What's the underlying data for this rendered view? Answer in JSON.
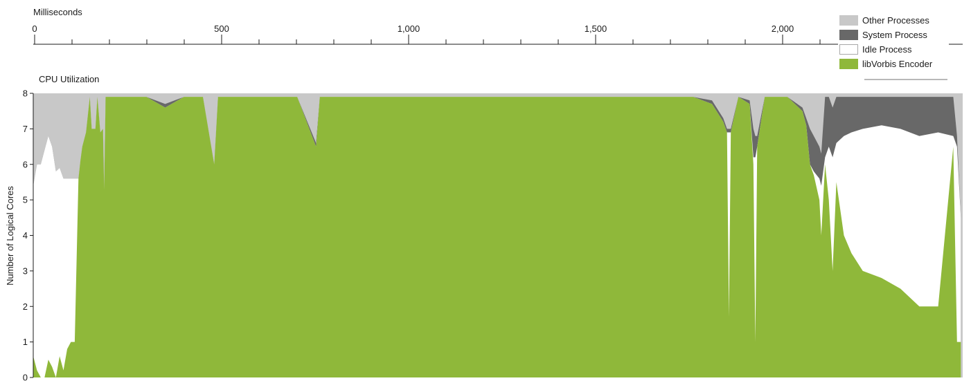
{
  "chart_data": {
    "type": "area",
    "time_axis_label": "Milliseconds",
    "time_ticks": [
      "0",
      "500",
      "1,000",
      "1,500",
      "2,000"
    ],
    "title": "CPU Utilization",
    "ylabel": "Number of Logical Cores",
    "ylim": [
      0,
      8
    ],
    "y_ticks": [
      "0",
      "1",
      "2",
      "3",
      "4",
      "5",
      "6",
      "7",
      "8"
    ],
    "xlim": [
      0,
      2465
    ],
    "stack_order": [
      "libVorbis Encoder",
      "Idle Process",
      "System Process",
      "Other Processes"
    ],
    "legend_position": "top-right",
    "series": [
      {
        "name": "libVorbis Encoder",
        "color": "#8fb83a",
        "points": [
          [
            0,
            0.6
          ],
          [
            10,
            0.2
          ],
          [
            20,
            0
          ],
          [
            30,
            0
          ],
          [
            40,
            0.5
          ],
          [
            50,
            0.3
          ],
          [
            60,
            0
          ],
          [
            70,
            0.6
          ],
          [
            80,
            0.2
          ],
          [
            90,
            0.8
          ],
          [
            100,
            1
          ],
          [
            110,
            1
          ],
          [
            120,
            5.6
          ],
          [
            125,
            6.1
          ],
          [
            130,
            6.5
          ],
          [
            140,
            6.9
          ],
          [
            150,
            7.9
          ],
          [
            155,
            7.0
          ],
          [
            165,
            7.0
          ],
          [
            170,
            7.9
          ],
          [
            178,
            6.9
          ],
          [
            185,
            7.0
          ],
          [
            188,
            5.3
          ],
          [
            192,
            7.9
          ],
          [
            200,
            7.9
          ],
          [
            240,
            7.9
          ],
          [
            300,
            7.9
          ],
          [
            350,
            7.6
          ],
          [
            400,
            7.9
          ],
          [
            450,
            7.9
          ],
          [
            480,
            6.0
          ],
          [
            490,
            7.9
          ],
          [
            550,
            7.9
          ],
          [
            600,
            7.9
          ],
          [
            650,
            7.9
          ],
          [
            700,
            7.9
          ],
          [
            750,
            6.5
          ],
          [
            760,
            7.9
          ],
          [
            800,
            7.9
          ],
          [
            850,
            7.9
          ],
          [
            900,
            7.9
          ],
          [
            950,
            7.9
          ],
          [
            1000,
            7.9
          ],
          [
            1050,
            7.9
          ],
          [
            1100,
            7.9
          ],
          [
            1150,
            7.9
          ],
          [
            1200,
            7.9
          ],
          [
            1250,
            7.9
          ],
          [
            1300,
            7.9
          ],
          [
            1350,
            7.9
          ],
          [
            1400,
            7.9
          ],
          [
            1450,
            7.9
          ],
          [
            1500,
            7.9
          ],
          [
            1550,
            7.9
          ],
          [
            1600,
            7.9
          ],
          [
            1650,
            7.9
          ],
          [
            1700,
            7.9
          ],
          [
            1750,
            7.9
          ],
          [
            1800,
            7.7
          ],
          [
            1830,
            7.2
          ],
          [
            1840,
            6.9
          ],
          [
            1845,
            1.7
          ],
          [
            1850,
            6.9
          ],
          [
            1870,
            7.9
          ],
          [
            1900,
            7.7
          ],
          [
            1910,
            6.0
          ],
          [
            1915,
            1.0
          ],
          [
            1920,
            6.5
          ],
          [
            1940,
            7.9
          ],
          [
            2000,
            7.9
          ],
          [
            2040,
            7.5
          ],
          [
            2050,
            7.1
          ],
          [
            2060,
            6.0
          ],
          [
            2070,
            5.7
          ],
          [
            2085,
            5.0
          ],
          [
            2090,
            4.0
          ],
          [
            2100,
            6.0
          ],
          [
            2110,
            5.0
          ],
          [
            2120,
            3.0
          ],
          [
            2130,
            5.5
          ],
          [
            2150,
            4.0
          ],
          [
            2170,
            3.5
          ],
          [
            2200,
            3.0
          ],
          [
            2250,
            2.8
          ],
          [
            2300,
            2.5
          ],
          [
            2350,
            2.0
          ],
          [
            2400,
            2.0
          ],
          [
            2440,
            6.5
          ],
          [
            2450,
            1.0
          ],
          [
            2460,
            1.0
          ]
        ]
      },
      {
        "name": "Idle Process",
        "color": "#ffffff",
        "points": [
          [
            0,
            5.4
          ],
          [
            10,
            6.0
          ],
          [
            20,
            6.0
          ],
          [
            30,
            6.4
          ],
          [
            40,
            6.8
          ],
          [
            50,
            6.5
          ],
          [
            60,
            5.8
          ],
          [
            70,
            5.9
          ],
          [
            80,
            5.6
          ],
          [
            90,
            5.6
          ],
          [
            100,
            5.6
          ],
          [
            110,
            5.6
          ],
          [
            120,
            5.6
          ],
          [
            125,
            6.1
          ],
          [
            130,
            6.5
          ],
          [
            140,
            6.9
          ],
          [
            150,
            7.9
          ],
          [
            155,
            7.0
          ],
          [
            165,
            7.0
          ],
          [
            170,
            7.9
          ],
          [
            178,
            6.9
          ],
          [
            185,
            7.0
          ],
          [
            188,
            5.3
          ],
          [
            192,
            7.9
          ],
          [
            200,
            7.9
          ],
          [
            240,
            7.9
          ],
          [
            300,
            7.9
          ],
          [
            350,
            7.6
          ],
          [
            400,
            7.9
          ],
          [
            450,
            7.9
          ],
          [
            480,
            6.0
          ],
          [
            490,
            7.9
          ],
          [
            550,
            7.9
          ],
          [
            600,
            7.9
          ],
          [
            650,
            7.9
          ],
          [
            700,
            7.9
          ],
          [
            750,
            6.5
          ],
          [
            760,
            7.9
          ],
          [
            800,
            7.9
          ],
          [
            850,
            7.9
          ],
          [
            900,
            7.9
          ],
          [
            950,
            7.9
          ],
          [
            1000,
            7.9
          ],
          [
            1050,
            7.9
          ],
          [
            1100,
            7.9
          ],
          [
            1150,
            7.9
          ],
          [
            1200,
            7.9
          ],
          [
            1250,
            7.9
          ],
          [
            1300,
            7.9
          ],
          [
            1350,
            7.9
          ],
          [
            1400,
            7.9
          ],
          [
            1450,
            7.9
          ],
          [
            1500,
            7.9
          ],
          [
            1550,
            7.9
          ],
          [
            1600,
            7.9
          ],
          [
            1650,
            7.9
          ],
          [
            1700,
            7.9
          ],
          [
            1750,
            7.9
          ],
          [
            1800,
            7.7
          ],
          [
            1830,
            7.2
          ],
          [
            1840,
            6.9
          ],
          [
            1845,
            6.9
          ],
          [
            1850,
            6.9
          ],
          [
            1870,
            7.9
          ],
          [
            1900,
            7.7
          ],
          [
            1910,
            6.2
          ],
          [
            1915,
            6.2
          ],
          [
            1920,
            6.5
          ],
          [
            1940,
            7.9
          ],
          [
            2000,
            7.9
          ],
          [
            2040,
            7.5
          ],
          [
            2050,
            7.1
          ],
          [
            2060,
            6.0
          ],
          [
            2070,
            5.8
          ],
          [
            2085,
            5.6
          ],
          [
            2090,
            5.4
          ],
          [
            2100,
            6.2
          ],
          [
            2110,
            6.5
          ],
          [
            2120,
            6.2
          ],
          [
            2130,
            6.6
          ],
          [
            2150,
            6.8
          ],
          [
            2170,
            6.9
          ],
          [
            2200,
            7.0
          ],
          [
            2250,
            7.1
          ],
          [
            2300,
            7.0
          ],
          [
            2350,
            6.8
          ],
          [
            2400,
            6.9
          ],
          [
            2440,
            6.8
          ],
          [
            2450,
            6.5
          ],
          [
            2460,
            4.5
          ]
        ]
      },
      {
        "name": "System Process",
        "color": "#686868",
        "points": [
          [
            0,
            5.4
          ],
          [
            10,
            6.0
          ],
          [
            20,
            6.0
          ],
          [
            30,
            6.4
          ],
          [
            40,
            6.8
          ],
          [
            50,
            6.5
          ],
          [
            60,
            5.8
          ],
          [
            70,
            5.9
          ],
          [
            80,
            5.6
          ],
          [
            90,
            5.6
          ],
          [
            100,
            5.6
          ],
          [
            110,
            5.6
          ],
          [
            120,
            5.6
          ],
          [
            125,
            6.1
          ],
          [
            130,
            6.5
          ],
          [
            140,
            6.9
          ],
          [
            150,
            7.9
          ],
          [
            155,
            7.0
          ],
          [
            165,
            7.0
          ],
          [
            170,
            7.9
          ],
          [
            178,
            6.9
          ],
          [
            185,
            7.0
          ],
          [
            188,
            5.3
          ],
          [
            192,
            7.9
          ],
          [
            200,
            7.9
          ],
          [
            240,
            7.9
          ],
          [
            300,
            7.9
          ],
          [
            350,
            7.7
          ],
          [
            400,
            7.9
          ],
          [
            450,
            7.9
          ],
          [
            480,
            6.0
          ],
          [
            490,
            7.9
          ],
          [
            550,
            7.9
          ],
          [
            600,
            7.9
          ],
          [
            650,
            7.9
          ],
          [
            700,
            7.9
          ],
          [
            750,
            6.6
          ],
          [
            760,
            7.9
          ],
          [
            800,
            7.9
          ],
          [
            850,
            7.9
          ],
          [
            900,
            7.9
          ],
          [
            950,
            7.9
          ],
          [
            1000,
            7.9
          ],
          [
            1050,
            7.9
          ],
          [
            1100,
            7.9
          ],
          [
            1150,
            7.9
          ],
          [
            1200,
            7.9
          ],
          [
            1250,
            7.9
          ],
          [
            1300,
            7.9
          ],
          [
            1350,
            7.9
          ],
          [
            1400,
            7.9
          ],
          [
            1450,
            7.9
          ],
          [
            1500,
            7.9
          ],
          [
            1550,
            7.9
          ],
          [
            1600,
            7.9
          ],
          [
            1650,
            7.9
          ],
          [
            1700,
            7.9
          ],
          [
            1750,
            7.9
          ],
          [
            1800,
            7.8
          ],
          [
            1830,
            7.3
          ],
          [
            1840,
            7.0
          ],
          [
            1845,
            7.0
          ],
          [
            1850,
            7.0
          ],
          [
            1870,
            7.9
          ],
          [
            1900,
            7.8
          ],
          [
            1910,
            7.0
          ],
          [
            1915,
            6.8
          ],
          [
            1920,
            6.8
          ],
          [
            1940,
            7.9
          ],
          [
            2000,
            7.9
          ],
          [
            2040,
            7.6
          ],
          [
            2050,
            7.3
          ],
          [
            2060,
            7.0
          ],
          [
            2070,
            6.8
          ],
          [
            2085,
            6.5
          ],
          [
            2090,
            6.3
          ],
          [
            2100,
            7.9
          ],
          [
            2110,
            7.9
          ],
          [
            2120,
            7.6
          ],
          [
            2130,
            7.9
          ],
          [
            2150,
            7.9
          ],
          [
            2170,
            7.9
          ],
          [
            2200,
            7.9
          ],
          [
            2250,
            7.9
          ],
          [
            2300,
            7.9
          ],
          [
            2350,
            7.9
          ],
          [
            2400,
            7.9
          ],
          [
            2440,
            7.9
          ],
          [
            2450,
            6.8
          ],
          [
            2460,
            4.5
          ]
        ]
      },
      {
        "name": "Other Processes",
        "color": "#c8c8c8",
        "points": [
          [
            0,
            8
          ],
          [
            100,
            8
          ],
          [
            200,
            8
          ],
          [
            300,
            8
          ],
          [
            400,
            8
          ],
          [
            500,
            8
          ],
          [
            600,
            8
          ],
          [
            700,
            8
          ],
          [
            800,
            8
          ],
          [
            900,
            8
          ],
          [
            1000,
            8
          ],
          [
            1100,
            8
          ],
          [
            1200,
            8
          ],
          [
            1300,
            8
          ],
          [
            1400,
            8
          ],
          [
            1500,
            8
          ],
          [
            1600,
            8
          ],
          [
            1700,
            8
          ],
          [
            1800,
            8
          ],
          [
            1900,
            8
          ],
          [
            2000,
            8
          ],
          [
            2100,
            8
          ],
          [
            2200,
            8
          ],
          [
            2300,
            8
          ],
          [
            2400,
            8
          ],
          [
            2465,
            8
          ]
        ]
      }
    ]
  }
}
